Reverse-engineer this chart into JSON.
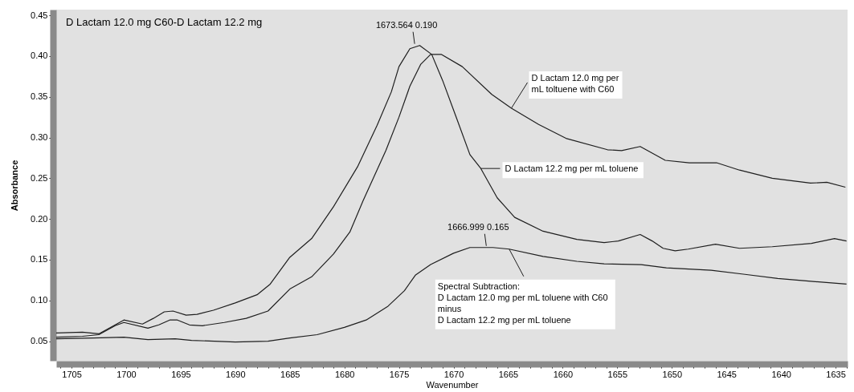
{
  "chart_data": {
    "type": "line",
    "title": "D Lactam 12.0 mg C60-D Lactam 12.2 mg",
    "xlabel": "Wavenumber",
    "ylabel": "Absorbance",
    "xlim": [
      1706.4,
      1633.9
    ],
    "ylim": [
      0.026,
      0.457
    ],
    "xticks": [
      {
        "value": 1706,
        "label": null
      },
      1705,
      {
        "value": 1704,
        "label": null
      },
      {
        "value": 1703,
        "label": null
      },
      {
        "value": 1702,
        "label": null
      },
      {
        "value": 1701,
        "label": null
      },
      1700,
      {
        "value": 1699,
        "label": null
      },
      {
        "value": 1698,
        "label": null
      },
      {
        "value": 1697,
        "label": null
      },
      {
        "value": 1696,
        "label": null
      },
      1695,
      {
        "value": 1694,
        "label": null
      },
      {
        "value": 1693,
        "label": null
      },
      {
        "value": 1692,
        "label": null
      },
      {
        "value": 1691,
        "label": null
      },
      1690,
      {
        "value": 1689,
        "label": null
      },
      {
        "value": 1688,
        "label": null
      },
      {
        "value": 1687,
        "label": null
      },
      {
        "value": 1686,
        "label": null
      },
      1685,
      {
        "value": 1684,
        "label": null
      },
      {
        "value": 1683,
        "label": null
      },
      {
        "value": 1682,
        "label": null
      },
      {
        "value": 1681,
        "label": null
      },
      1680,
      {
        "value": 1679,
        "label": null
      },
      {
        "value": 1678,
        "label": null
      },
      {
        "value": 1677,
        "label": null
      },
      {
        "value": 1676,
        "label": null
      },
      1675,
      {
        "value": 1674,
        "label": null
      },
      {
        "value": 1673,
        "label": null
      },
      {
        "value": 1672,
        "label": null
      },
      {
        "value": 1671,
        "label": null
      },
      1670,
      {
        "value": 1669,
        "label": null
      },
      {
        "value": 1668,
        "label": null
      },
      {
        "value": 1667,
        "label": null
      },
      {
        "value": 1666,
        "label": null
      },
      1665,
      {
        "value": 1664,
        "label": null
      },
      {
        "value": 1663,
        "label": null
      },
      {
        "value": 1662,
        "label": null
      },
      {
        "value": 1661,
        "label": null
      },
      1660,
      {
        "value": 1659,
        "label": null
      },
      {
        "value": 1658,
        "label": null
      },
      {
        "value": 1657,
        "label": null
      },
      {
        "value": 1656,
        "label": null
      },
      1655,
      {
        "value": 1654,
        "label": null
      },
      {
        "value": 1653,
        "label": null
      },
      {
        "value": 1652,
        "label": null
      },
      {
        "value": 1651,
        "label": null
      },
      1650,
      {
        "value": 1649,
        "label": null
      },
      {
        "value": 1648,
        "label": null
      },
      {
        "value": 1647,
        "label": null
      },
      {
        "value": 1646,
        "label": null
      },
      1645,
      {
        "value": 1644,
        "label": null
      },
      {
        "value": 1643,
        "label": null
      },
      {
        "value": 1642,
        "label": null
      },
      {
        "value": 1641,
        "label": null
      },
      1640,
      {
        "value": 1639,
        "label": null
      },
      {
        "value": 1638,
        "label": null
      },
      {
        "value": 1637,
        "label": null
      },
      {
        "value": 1636,
        "label": null
      },
      1635,
      {
        "value": 1634,
        "label": null
      }
    ],
    "yticks": [
      0.05,
      {
        "value": 0.1,
        "label": "0.10"
      },
      0.15,
      {
        "value": 0.2,
        "label": "0.20"
      },
      0.25,
      {
        "value": 0.3,
        "label": "0.30"
      },
      0.35,
      {
        "value": 0.4,
        "label": "0.40"
      },
      0.45
    ],
    "series": [
      {
        "name": "D Lactam 12.0 mg per\nmL toltuene with C60",
        "color": "#1e1e1e",
        "x": [
          1706.4,
          1704,
          1702.5,
          1701,
          1700.2,
          1698,
          1697,
          1696,
          1695.3,
          1694.2,
          1693,
          1691,
          1689,
          1687,
          1685,
          1683,
          1681,
          1679.5,
          1678.3,
          1676.2,
          1675,
          1674,
          1673,
          1672.1,
          1671.1,
          1669.2,
          1666.5,
          1664.7,
          1662.2,
          1659.7,
          1655.9,
          1654.6,
          1652.9,
          1650.6,
          1648.4,
          1645.9,
          1643.8,
          1640.8,
          1637.3,
          1635.8,
          1634.1
        ],
        "values": [
          0.055,
          0.056,
          0.058,
          0.069,
          0.073,
          0.066,
          0.07,
          0.076,
          0.076,
          0.07,
          0.069,
          0.073,
          0.078,
          0.087,
          0.114,
          0.129,
          0.157,
          0.184,
          0.222,
          0.284,
          0.325,
          0.363,
          0.39,
          0.402,
          0.402,
          0.387,
          0.353,
          0.336,
          0.316,
          0.299,
          0.285,
          0.284,
          0.289,
          0.272,
          0.269,
          0.269,
          0.26,
          0.25,
          0.244,
          0.245,
          0.239
        ]
      },
      {
        "name": "D Lactam 12.2 mg per mL toluene",
        "color": "#1e1e1e",
        "x": [
          1706.4,
          1704,
          1702.5,
          1701,
          1700.2,
          1698.5,
          1697.5,
          1696.5,
          1695.7,
          1694.5,
          1693.5,
          1692,
          1690,
          1688,
          1686.8,
          1685,
          1683,
          1681,
          1678.8,
          1677,
          1675.7,
          1675,
          1674,
          1673.1,
          1672,
          1671,
          1669.7,
          1668.5,
          1667.5,
          1666,
          1664.4,
          1661.8,
          1658.7,
          1656.2,
          1654.9,
          1652.9,
          1651.8,
          1650.8,
          1649.7,
          1648.5,
          1646,
          1643.8,
          1640.8,
          1637.2,
          1635.1,
          1634
        ],
        "values": [
          0.06,
          0.061,
          0.059,
          0.07,
          0.076,
          0.071,
          0.078,
          0.086,
          0.087,
          0.082,
          0.083,
          0.088,
          0.097,
          0.107,
          0.12,
          0.153,
          0.176,
          0.215,
          0.264,
          0.315,
          0.356,
          0.387,
          0.409,
          0.413,
          0.402,
          0.37,
          0.323,
          0.279,
          0.262,
          0.226,
          0.202,
          0.185,
          0.175,
          0.171,
          0.173,
          0.181,
          0.173,
          0.164,
          0.161,
          0.163,
          0.169,
          0.164,
          0.166,
          0.17,
          0.176,
          0.173
        ]
      },
      {
        "name": "Spectral Subtraction:\nD Lactam 12.0 mg per mL toluene with C60\nminus\nD Lactam 12.2 mg per mL toluene",
        "color": "#1e1e1e",
        "x": [
          1706.4,
          1703,
          1700.2,
          1698,
          1695.5,
          1694,
          1690,
          1687,
          1685,
          1682.5,
          1680,
          1678,
          1676,
          1674.5,
          1673.5,
          1672.1,
          1670,
          1668.5,
          1666.4,
          1664.9,
          1661.8,
          1658.7,
          1656.2,
          1652.8,
          1650.5,
          1646.4,
          1643.3,
          1640.3,
          1637.7,
          1634
        ],
        "values": [
          0.053,
          0.054,
          0.055,
          0.052,
          0.053,
          0.051,
          0.049,
          0.05,
          0.054,
          0.058,
          0.067,
          0.076,
          0.093,
          0.112,
          0.131,
          0.144,
          0.158,
          0.165,
          0.165,
          0.163,
          0.154,
          0.148,
          0.145,
          0.144,
          0.14,
          0.137,
          0.132,
          0.127,
          0.124,
          0.12
        ]
      }
    ],
    "annotations": [
      {
        "text": "1673.564  0.190",
        "x": 1673.564,
        "y": 0.413
      },
      {
        "text": "1666.999  0.165",
        "x": 1666.999,
        "y": 0.165
      }
    ]
  }
}
